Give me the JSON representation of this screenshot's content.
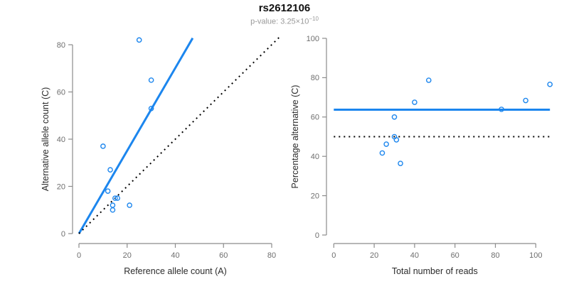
{
  "header": {
    "title": "rs2612106",
    "pvalue_text": "p-value: 3.25×10",
    "pvalue_exponent": "−10"
  },
  "colors": {
    "plot_blue": "#1C86EE",
    "dotted_black": "#000000",
    "axis_line": "#8C8C8C",
    "tick_label": "#6E6E6E",
    "axis_title": "#2B2B2B",
    "title": "#111111",
    "subtitle": "#999999"
  },
  "chart_data": [
    {
      "type": "scatter",
      "panel": "left",
      "xlabel": "Reference allele count (A)",
      "ylabel": "Alternative allele count (C)",
      "xlim": [
        0,
        83
      ],
      "ylim": [
        0,
        83
      ],
      "xticks": [
        0,
        20,
        40,
        60,
        80
      ],
      "yticks": [
        0,
        20,
        40,
        60,
        80
      ],
      "grid": "off",
      "legend": "none",
      "marker": "open-circle",
      "points": [
        [
          25,
          82
        ],
        [
          30,
          65
        ],
        [
          30,
          53
        ],
        [
          10,
          37
        ],
        [
          13,
          27
        ],
        [
          12,
          18
        ],
        [
          15,
          15
        ],
        [
          16,
          15
        ],
        [
          14,
          12
        ],
        [
          21,
          12
        ],
        [
          14,
          10
        ]
      ],
      "lines": [
        {
          "name": "fitted-ratio-line",
          "style": "solid",
          "color": "#1C86EE",
          "width": 3,
          "from": [
            0,
            0
          ],
          "to": [
            47.2,
            82.8
          ]
        },
        {
          "name": "identity-line",
          "style": "dotted",
          "color": "#000000",
          "width": 2,
          "from": [
            0,
            0
          ],
          "to": [
            83,
            83
          ]
        }
      ]
    },
    {
      "type": "scatter",
      "panel": "right",
      "xlabel": "Total number of reads",
      "ylabel": "Percentage alternative (C)",
      "xlim": [
        0,
        107
      ],
      "ylim": [
        0,
        100
      ],
      "xticks": [
        0,
        20,
        40,
        60,
        80,
        100
      ],
      "yticks": [
        0,
        20,
        40,
        60,
        80,
        100
      ],
      "grid": "off",
      "legend": "none",
      "marker": "open-circle",
      "points": [
        [
          24,
          41.7
        ],
        [
          26,
          46.2
        ],
        [
          30,
          60
        ],
        [
          30,
          50
        ],
        [
          31,
          48.4
        ],
        [
          33,
          36.4
        ],
        [
          40,
          67.5
        ],
        [
          47,
          78.7
        ],
        [
          83,
          63.9
        ],
        [
          95,
          68.4
        ],
        [
          107,
          76.6
        ]
      ],
      "lines": [
        {
          "name": "mean-percentage-line",
          "style": "solid",
          "color": "#1C86EE",
          "width": 3,
          "from": [
            0,
            63.7
          ],
          "to": [
            107,
            63.7
          ]
        },
        {
          "name": "expected-50-percent-line",
          "style": "dotted",
          "color": "#000000",
          "width": 2,
          "from": [
            0,
            50
          ],
          "to": [
            107,
            50
          ]
        }
      ]
    }
  ]
}
